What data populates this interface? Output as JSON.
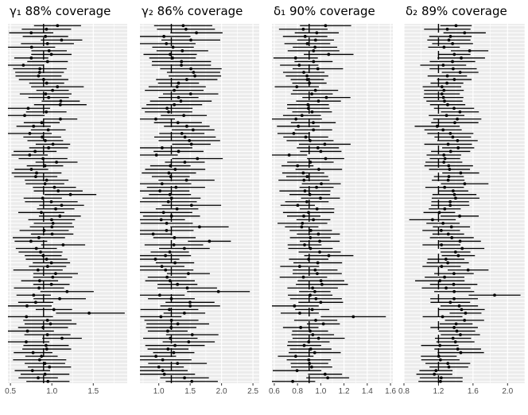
{
  "chart_data": [
    {
      "type": "interval",
      "title": "γ₁ 88% coverage",
      "true_value": 0.9,
      "n_intervals": 100,
      "xlim": [
        0.47,
        1.91
      ],
      "xticks": [
        0.5,
        1.0,
        1.5
      ],
      "xtick_labels": [
        "0.5",
        "1.0",
        "1.5"
      ],
      "xlabel": "",
      "ylabel": "",
      "grid": true,
      "point_color": "#000000",
      "bg_color": "#ebebeb",
      "center": 0.92,
      "mean_half_width": 0.26,
      "outlier": {
        "index": 80,
        "estimate": 1.45,
        "lower": 1.05,
        "upper": 1.88
      }
    },
    {
      "type": "interval",
      "title": "γ₂ 86% coverage",
      "true_value": 1.2,
      "n_intervals": 100,
      "xlim": [
        0.7,
        2.6
      ],
      "xticks": [
        1.0,
        1.5,
        2.0,
        2.5
      ],
      "xtick_labels": [
        "1.0",
        "1.5",
        "2.0",
        "2.5"
      ],
      "xlabel": "",
      "ylabel": "",
      "grid": true,
      "point_color": "#000000",
      "bg_color": "#ebebeb",
      "center": 1.32,
      "mean_half_width": 0.4,
      "outlier": {
        "index": 74,
        "estimate": 1.95,
        "lower": 1.45,
        "upper": 2.45
      }
    },
    {
      "type": "interval",
      "title": "δ₁ 90% coverage",
      "true_value": 0.9,
      "n_intervals": 100,
      "xlim": [
        0.58,
        1.62
      ],
      "xticks": [
        0.6,
        0.8,
        1.0,
        1.2,
        1.4,
        1.6
      ],
      "xtick_labels": [
        "0.6",
        "0.8",
        "1.0",
        "1.2",
        "1.4",
        "1.6"
      ],
      "xlabel": "",
      "ylabel": "",
      "grid": true,
      "point_color": "#000000",
      "bg_color": "#ebebeb",
      "center": 0.92,
      "mean_half_width": 0.18,
      "outlier": {
        "index": 81,
        "estimate": 1.28,
        "lower": 1.0,
        "upper": 1.56
      }
    },
    {
      "type": "interval",
      "title": "δ₂ 89% coverage",
      "true_value": 1.2,
      "n_intervals": 100,
      "xlim": [
        0.8,
        2.2
      ],
      "xticks": [
        0.8,
        1.2,
        1.6,
        2.0
      ],
      "xtick_labels": [
        "0.8",
        "1.2",
        "1.6",
        "2.0"
      ],
      "xlabel": "",
      "ylabel": "",
      "grid": true,
      "point_color": "#000000",
      "bg_color": "#ebebeb",
      "center": 1.34,
      "mean_half_width": 0.23,
      "outlier": {
        "index": 75,
        "estimate": 1.85,
        "lower": 1.55,
        "upper": 2.15
      }
    }
  ]
}
